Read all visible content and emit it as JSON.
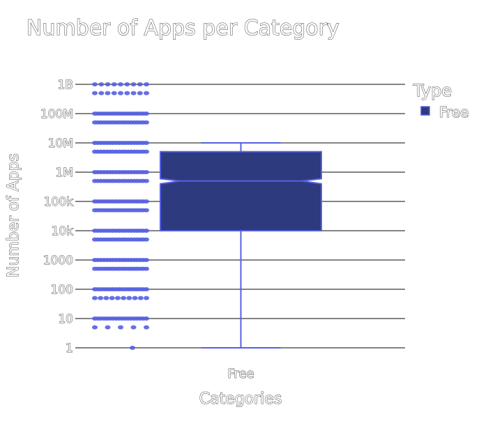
{
  "chart_data": {
    "type": "box",
    "title": "Number of Apps per Category",
    "xlabel": "Categories",
    "ylabel": "Number of Apps",
    "y_scale": "log",
    "yticks": [
      {
        "value": 1,
        "label": "1"
      },
      {
        "value": 10,
        "label": "10"
      },
      {
        "value": 100,
        "label": "100"
      },
      {
        "value": 1000,
        "label": "1000"
      },
      {
        "value": 10000,
        "label": "10k"
      },
      {
        "value": 100000,
        "label": "100k"
      },
      {
        "value": 1000000,
        "label": "1M"
      },
      {
        "value": 10000000,
        "label": "10M"
      },
      {
        "value": 100000000,
        "label": "100M"
      },
      {
        "value": 1000000000,
        "label": "1B"
      }
    ],
    "grid": true,
    "legend": {
      "title": "Type",
      "position": "top-right",
      "items": [
        {
          "name": "Free",
          "color": "#2e3a7e"
        }
      ]
    },
    "categories": [
      "Free"
    ],
    "series": [
      {
        "name": "Free",
        "color": "#2e3a7e",
        "line_color": "#5560e0",
        "box": {
          "min": 1,
          "q1": 10000,
          "median": 500000,
          "q3": 5000000,
          "max": 10000000,
          "notch_low": 400000,
          "notch_high": 600000
        },
        "points": [
          {
            "value": 1,
            "count": 1
          },
          {
            "value": 5,
            "count": 5
          },
          {
            "value": 10,
            "count": 18
          },
          {
            "value": 50,
            "count": 10
          },
          {
            "value": 100,
            "count": 18
          },
          {
            "value": 500,
            "count": 18
          },
          {
            "value": 1000,
            "count": 18
          },
          {
            "value": 5000,
            "count": 18
          },
          {
            "value": 10000,
            "count": 18
          },
          {
            "value": 50000,
            "count": 18
          },
          {
            "value": 100000,
            "count": 18
          },
          {
            "value": 500000,
            "count": 18
          },
          {
            "value": 1000000,
            "count": 18
          },
          {
            "value": 5000000,
            "count": 18
          },
          {
            "value": 10000000,
            "count": 18
          },
          {
            "value": 50000000,
            "count": 18
          },
          {
            "value": 100000000,
            "count": 18
          },
          {
            "value": 500000000,
            "count": 9
          },
          {
            "value": 1000000000,
            "count": 9
          }
        ]
      }
    ]
  }
}
